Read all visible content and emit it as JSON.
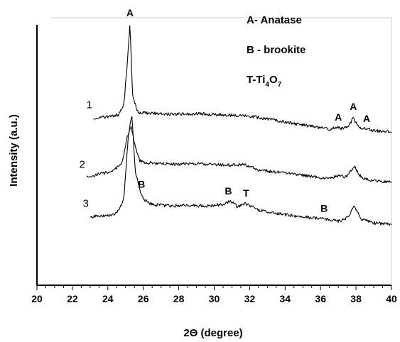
{
  "chart_data": {
    "type": "line",
    "xlabel_prefix": "2",
    "xlabel_symbol": "Θ",
    "xlabel_suffix": " (degree)",
    "ylabel": "Intensity (a.u.)",
    "xlim": [
      20,
      40
    ],
    "x_ticks": [
      "20",
      "22",
      "24",
      "26",
      "28",
      "30",
      "32",
      "34",
      "36",
      "38",
      "40"
    ],
    "y_ticks": [],
    "grid": false,
    "legend": [
      {
        "key": "A",
        "text": "- Anatase"
      },
      {
        "key": "B",
        "text": " - brookite"
      },
      {
        "key": "T",
        "text": "-Ti",
        "sub1": "4",
        "mid": "O",
        "sub2": "7"
      }
    ],
    "series": [
      {
        "name": "1",
        "x": [
          23.2,
          24.0,
          24.6,
          24.9,
          25.1,
          25.25,
          25.4,
          25.7,
          26.2,
          27,
          28,
          29,
          30,
          31,
          31.8,
          32.5,
          33.5,
          34.5,
          35.5,
          36.5,
          36.9,
          37.2,
          37.6,
          37.85,
          38.1,
          38.5,
          39,
          40
        ],
        "y": [
          0.7,
          0.75,
          0.85,
          1.3,
          3.2,
          5.0,
          1.7,
          0.95,
          0.92,
          0.9,
          0.88,
          0.9,
          0.86,
          0.82,
          0.8,
          0.72,
          0.6,
          0.45,
          0.32,
          0.2,
          0.28,
          0.22,
          0.32,
          0.75,
          0.3,
          0.22,
          0.12,
          0.08
        ]
      },
      {
        "name": "2",
        "x": [
          22.8,
          23.5,
          24.3,
          24.8,
          25.1,
          25.3,
          25.5,
          25.8,
          26.3,
          27,
          28,
          29,
          30,
          31,
          31.7,
          32.5,
          33.5,
          34.5,
          35.5,
          36.5,
          37.0,
          37.4,
          37.9,
          38.3,
          39,
          40
        ],
        "y": [
          0.25,
          0.4,
          0.55,
          0.9,
          2.1,
          2.6,
          1.8,
          1.0,
          0.92,
          0.88,
          0.86,
          0.88,
          0.84,
          0.82,
          0.85,
          0.6,
          0.5,
          0.4,
          0.3,
          0.2,
          0.35,
          0.25,
          0.75,
          0.25,
          0.1,
          0.05
        ]
      },
      {
        "name": "3",
        "x": [
          23.0,
          23.8,
          24.5,
          24.9,
          25.15,
          25.35,
          25.55,
          25.8,
          26.0,
          26.5,
          27.5,
          28.5,
          29.5,
          30.5,
          30.9,
          31.3,
          31.8,
          32.5,
          33.5,
          34.5,
          35.5,
          36.3,
          37.0,
          37.5,
          37.9,
          38.3,
          39,
          40
        ],
        "y": [
          0.4,
          0.45,
          0.55,
          1.2,
          4.0,
          5.1,
          2.5,
          1.6,
          1.2,
          0.95,
          0.9,
          0.92,
          0.9,
          0.95,
          1.15,
          0.85,
          1.0,
          0.7,
          0.55,
          0.45,
          0.35,
          0.3,
          0.2,
          0.35,
          0.85,
          0.3,
          0.12,
          0.05
        ]
      }
    ],
    "annotations": [
      {
        "series": 0,
        "text": "A",
        "x": 25.25
      },
      {
        "series": 0,
        "text": "A",
        "x": 37.0
      },
      {
        "series": 0,
        "text": "A",
        "x": 37.85
      },
      {
        "series": 0,
        "text": "A",
        "x": 38.6
      },
      {
        "series": 2,
        "text": "B",
        "x": 25.9
      },
      {
        "series": 2,
        "text": "B",
        "x": 30.8
      },
      {
        "series": 2,
        "text": "T",
        "x": 31.8
      },
      {
        "series": 2,
        "text": "B",
        "x": 36.2
      }
    ]
  }
}
